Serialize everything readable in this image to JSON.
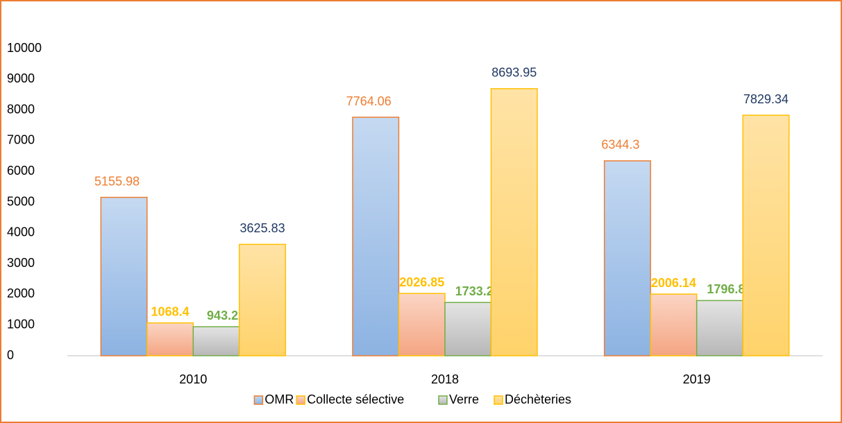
{
  "chart_data": {
    "type": "bar",
    "categories": [
      "2010",
      "2018",
      "2019"
    ],
    "series": [
      {
        "name": "OMR",
        "color": "#8db3e2",
        "top_color": "#c5d9f1",
        "edge_color": "#ed7d31",
        "label_color": "#ed7d31",
        "values": [
          5155.98,
          7764.06,
          6344.3
        ]
      },
      {
        "name": "Collecte sélective",
        "color": "#f4a582",
        "top_color": "#fbd5c4",
        "edge_color": "#ffc000",
        "label_color": "#ffc000",
        "values": [
          1068.4,
          2026.85,
          2006.14
        ]
      },
      {
        "name": "Verre",
        "color": "#b7b7b7",
        "top_color": "#e4e4e4",
        "edge_color": "#70ad47",
        "label_color": "#70ad47",
        "values": [
          943.22,
          1733.29,
          1796.83
        ]
      },
      {
        "name": "Déchèteries",
        "color": "#ffd36b",
        "top_color": "#ffe3a6",
        "edge_color": "#ffc000",
        "label_color": "#203864",
        "values": [
          3625.83,
          8693.95,
          7829.34
        ]
      }
    ],
    "ylim": [
      0,
      10000
    ],
    "yticks": [
      0,
      1000,
      2000,
      3000,
      4000,
      5000,
      6000,
      7000,
      8000,
      9000,
      10000
    ],
    "grid": false,
    "legend": "bottom"
  }
}
